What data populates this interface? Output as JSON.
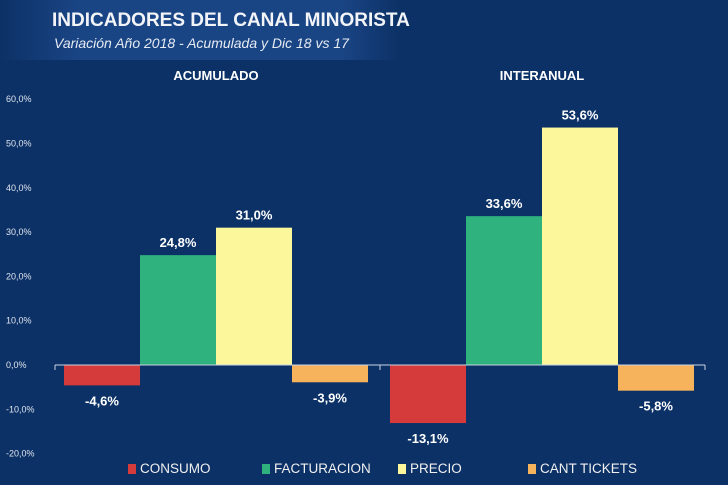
{
  "header": {
    "title": "INDICADORES DEL CANAL MINORISTA",
    "subtitle": "Variación Año 2018 - Acumulada y Dic 18 vs 17"
  },
  "chart_data": {
    "type": "bar",
    "categories": [
      "ACUMULADO",
      "INTERANUAL"
    ],
    "series": [
      {
        "name": "CONSUMO",
        "color": "#d63b3b",
        "values": [
          -4.6,
          -13.1
        ],
        "labels": [
          "-4,6%",
          "-13,1%"
        ]
      },
      {
        "name": "FACTURACION",
        "color": "#2fb27d",
        "values": [
          24.8,
          33.6
        ],
        "labels": [
          "24,8%",
          "33,6%"
        ]
      },
      {
        "name": "PRECIO",
        "color": "#fbf79a",
        "values": [
          31.0,
          53.6
        ],
        "labels": [
          "31,0%",
          "53,6%"
        ]
      },
      {
        "name": "CANT TICKETS",
        "color": "#f6b35c",
        "values": [
          -3.9,
          -5.8
        ],
        "labels": [
          "-3,9%",
          "-5,8%"
        ]
      }
    ],
    "ylim": [
      -20,
      60
    ],
    "yticks": [
      60,
      50,
      40,
      30,
      20,
      10,
      0,
      -10,
      -20
    ],
    "ytick_labels": [
      "60,0%",
      "50,0%",
      "40,0%",
      "30,0%",
      "20,0%",
      "10,0%",
      "0,0%",
      "-10,0%",
      "-20,0%"
    ],
    "grid": false,
    "legend": "bottom"
  }
}
